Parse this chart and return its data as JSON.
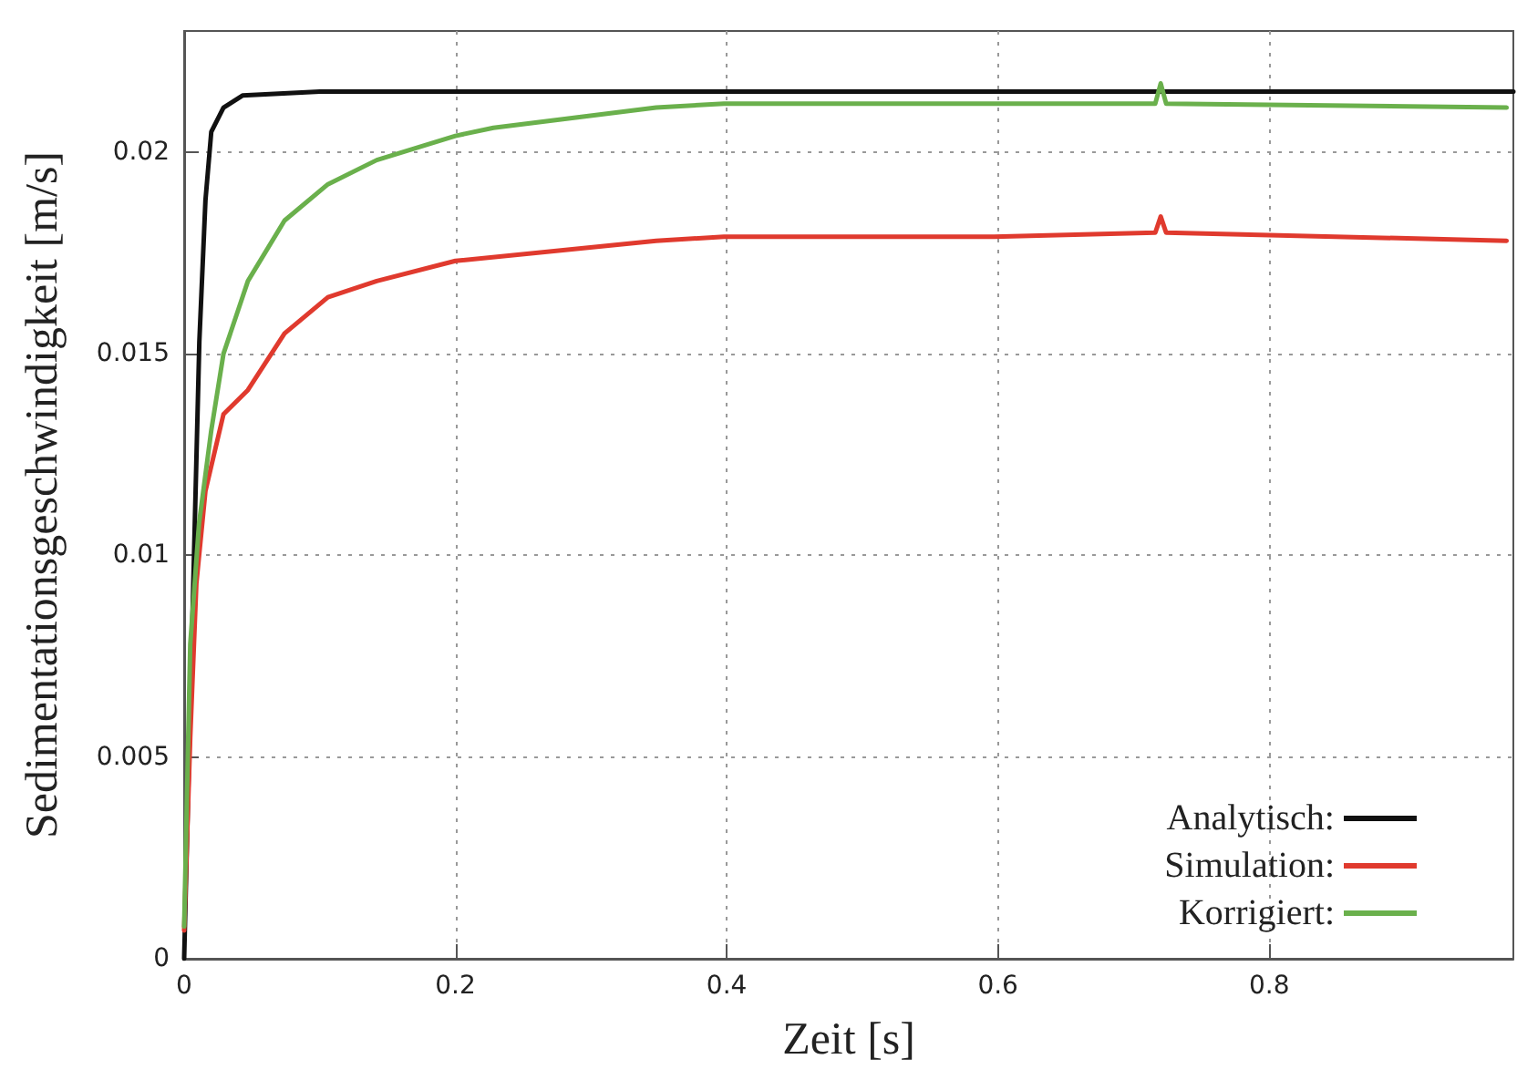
{
  "chart_data": {
    "type": "line",
    "xlabel": "Zeit [s]",
    "ylabel": "Sedimentationsgeschwindigkeit [m/s]",
    "xlim": [
      0,
      0.98
    ],
    "ylim": [
      0,
      0.023
    ],
    "xticks": [
      0,
      0.2,
      0.4,
      0.6,
      0.8
    ],
    "yticks": [
      0,
      0.005,
      0.01,
      0.015,
      0.02
    ],
    "grid": true,
    "legend": "bottom right",
    "marker": "none",
    "line_style": "solid",
    "series": [
      {
        "name": "Analytisch:",
        "color": "#111111",
        "x": [
          0,
          0.0045,
          0.0112,
          0.0157,
          0.02,
          0.029,
          0.043,
          0.1,
          0.3,
          0.5,
          0.7,
          0.98
        ],
        "values": [
          0,
          0.0063,
          0.0153,
          0.0188,
          0.0205,
          0.0211,
          0.0214,
          0.0215,
          0.0215,
          0.0215,
          0.0215,
          0.0215
        ]
      },
      {
        "name": "Simulation:",
        "color": "#e03a2e",
        "x": [
          0,
          0.0045,
          0.009,
          0.0157,
          0.029,
          0.047,
          0.074,
          0.106,
          0.142,
          0.2,
          0.348,
          0.398,
          0.597,
          0.716,
          0.72,
          0.724,
          0.975
        ],
        "values": [
          0.0007,
          0.0055,
          0.0093,
          0.0116,
          0.0135,
          0.0141,
          0.0155,
          0.0164,
          0.0168,
          0.0173,
          0.0178,
          0.0179,
          0.0179,
          0.018,
          0.0184,
          0.018,
          0.0178
        ]
      },
      {
        "name": "Korrigiert:",
        "color": "#6ab04c",
        "x": [
          0,
          0.0045,
          0.011,
          0.02,
          0.029,
          0.047,
          0.074,
          0.106,
          0.142,
          0.2,
          0.228,
          0.348,
          0.398,
          0.597,
          0.716,
          0.72,
          0.724,
          0.975
        ],
        "values": [
          0.0008,
          0.0078,
          0.0108,
          0.0131,
          0.015,
          0.0168,
          0.0183,
          0.0192,
          0.0198,
          0.0204,
          0.0206,
          0.0211,
          0.0212,
          0.0212,
          0.0212,
          0.0217,
          0.0212,
          0.0211
        ]
      }
    ]
  }
}
